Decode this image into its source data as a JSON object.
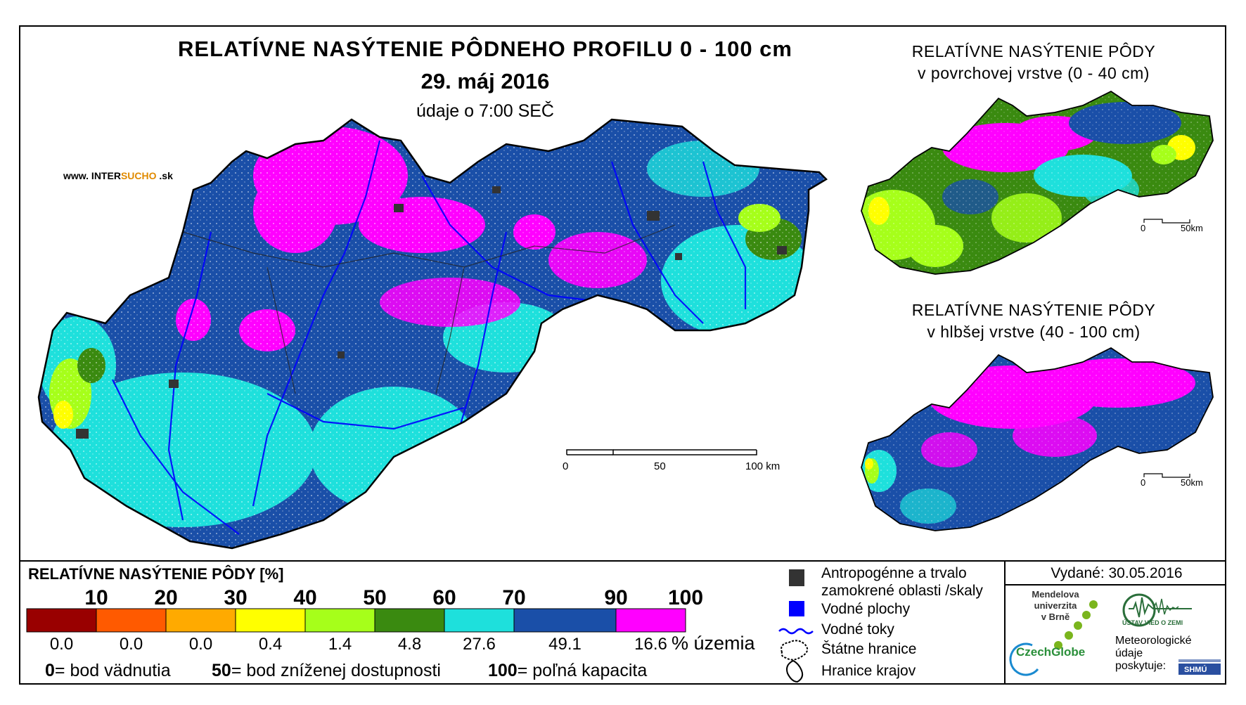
{
  "website": {
    "prefix": "www. INTER",
    "accent": "SUCHO",
    "suffix": " .sk"
  },
  "main_map": {
    "title": "RELATÍVNE NASÝTENIE PÔDNEHO PROFILU 0 - 100 cm",
    "date": "29. máj 2016",
    "time": "údaje o 7:00 SEČ",
    "scale": {
      "labels": [
        "0",
        "50",
        "100 km"
      ]
    }
  },
  "inset_surface": {
    "title_line1": "RELATÍVNE NASÝTENIE PÔDY",
    "title_line2": "v povrchovej vrstve (0 - 40 cm)",
    "scale": {
      "labels": [
        "0",
        "50km"
      ]
    }
  },
  "inset_deep": {
    "title_line1": "RELATÍVNE NASÝTENIE PÔDY",
    "title_line2": "v hlbšej vrstve (40 - 100 cm)",
    "scale": {
      "labels": [
        "0",
        "50km"
      ]
    }
  },
  "legend": {
    "title": "RELATÍVNE NASÝTENIE PÔDY [%]",
    "ticks": [
      "10",
      "20",
      "30",
      "40",
      "50",
      "60",
      "70",
      "90",
      "100"
    ],
    "classes": [
      {
        "color": "#990000",
        "pct": "0.0"
      },
      {
        "color": "#ff5a00",
        "pct": "0.0"
      },
      {
        "color": "#ffaa00",
        "pct": "0.0"
      },
      {
        "color": "#ffff00",
        "pct": "0.4"
      },
      {
        "color": "#a6ff1a",
        "pct": "1.4"
      },
      {
        "color": "#3a8a10",
        "pct": "4.8"
      },
      {
        "color": "#1ee0dc",
        "pct": "27.6"
      },
      {
        "color": "#1a4fa8",
        "pct": "49.1"
      },
      {
        "color": "#ff00ff",
        "pct": "16.6"
      }
    ],
    "pct_suffix": "% územia",
    "definitions": [
      {
        "value": "0",
        "text": "= bod vädnutia"
      },
      {
        "value": "50",
        "text": "= bod zníženej dostupnosti"
      },
      {
        "value": "100",
        "text": "= poľná kapacita"
      }
    ]
  },
  "map_key": {
    "anthropogenic_line1": "Antropogénne a trvalo",
    "anthropogenic_line2": "zamokrené oblasti /skaly",
    "water_areas": "Vodné plochy",
    "water_streams": "Vodné toky",
    "state_border": "Štátne hranice",
    "region_border": "Hranice krajov"
  },
  "credits": {
    "issued": "Vydané: 30.05.2016",
    "mendel_line1": "Mendelova",
    "mendel_line2": "univerzita",
    "mendel_line3": "v Brně",
    "czechglobe": "CzechGlobe",
    "uvz": "ÚSTAV VIED O ZEMI",
    "met_line1": "Meteorologické",
    "met_line2": "údaje",
    "met_line3": "poskytuje:",
    "shmu": "SHMÚ"
  }
}
